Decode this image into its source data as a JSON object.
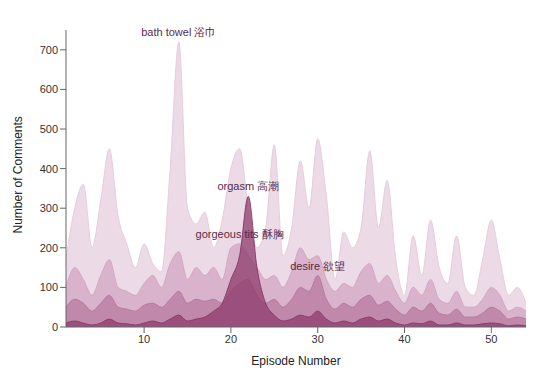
{
  "chart_data": {
    "type": "area",
    "x_label": "Episode Number",
    "y_label": "Number of Comments",
    "x": [
      1,
      2,
      3,
      4,
      5,
      6,
      7,
      8,
      9,
      10,
      11,
      12,
      13,
      14,
      15,
      16,
      17,
      18,
      19,
      20,
      21,
      22,
      23,
      24,
      25,
      26,
      27,
      28,
      29,
      30,
      31,
      32,
      33,
      34,
      35,
      36,
      37,
      38,
      39,
      40,
      41,
      42,
      43,
      44,
      45,
      46,
      47,
      48,
      49,
      50,
      51,
      52,
      53,
      54
    ],
    "xlim": [
      1,
      54
    ],
    "xticks": [
      10,
      20,
      30,
      40,
      50
    ],
    "ylim": [
      0,
      750
    ],
    "yticks": [
      0,
      100,
      200,
      300,
      400,
      500,
      600,
      700
    ],
    "grid": false,
    "stacked": false,
    "series": [
      {
        "name": "bath towel 浴巾",
        "color": "#e6cddd",
        "values": [
          170,
          300,
          360,
          200,
          320,
          450,
          280,
          210,
          150,
          210,
          160,
          140,
          400,
          720,
          300,
          260,
          290,
          200,
          270,
          400,
          450,
          300,
          200,
          250,
          460,
          180,
          250,
          420,
          300,
          475,
          330,
          120,
          240,
          200,
          250,
          445,
          250,
          370,
          170,
          80,
          230,
          130,
          270,
          150,
          110,
          230,
          100,
          80,
          170,
          270,
          170,
          80,
          100,
          60
        ]
      },
      {
        "name": "gorgeous tits 酥胸",
        "color": "#d3a6c3",
        "values": [
          100,
          150,
          120,
          80,
          130,
          170,
          100,
          90,
          80,
          110,
          130,
          100,
          160,
          190,
          120,
          150,
          130,
          150,
          120,
          200,
          210,
          180,
          150,
          120,
          130,
          100,
          140,
          200,
          170,
          180,
          120,
          90,
          110,
          100,
          140,
          160,
          110,
          130,
          90,
          60,
          100,
          80,
          120,
          70,
          60,
          90,
          50,
          50,
          70,
          100,
          80,
          40,
          50,
          40
        ]
      },
      {
        "name": "desire 欲望",
        "color": "#b77a9f",
        "values": [
          50,
          70,
          60,
          40,
          60,
          80,
          50,
          45,
          40,
          55,
          60,
          50,
          70,
          90,
          60,
          70,
          65,
          70,
          60,
          90,
          110,
          120,
          80,
          60,
          70,
          50,
          70,
          100,
          90,
          130,
          70,
          45,
          60,
          50,
          70,
          80,
          55,
          65,
          45,
          30,
          50,
          40,
          60,
          35,
          30,
          45,
          25,
          25,
          35,
          50,
          40,
          20,
          25,
          20
        ]
      },
      {
        "name": "orgasm 高潮",
        "color": "#8d3c6c",
        "values": [
          10,
          15,
          10,
          5,
          10,
          20,
          10,
          8,
          5,
          10,
          15,
          10,
          20,
          30,
          15,
          20,
          25,
          40,
          60,
          120,
          180,
          330,
          150,
          60,
          30,
          15,
          20,
          30,
          25,
          40,
          20,
          10,
          15,
          10,
          20,
          25,
          15,
          20,
          10,
          5,
          10,
          8,
          15,
          5,
          5,
          10,
          5,
          5,
          8,
          10,
          8,
          3,
          5,
          3
        ]
      }
    ]
  }
}
